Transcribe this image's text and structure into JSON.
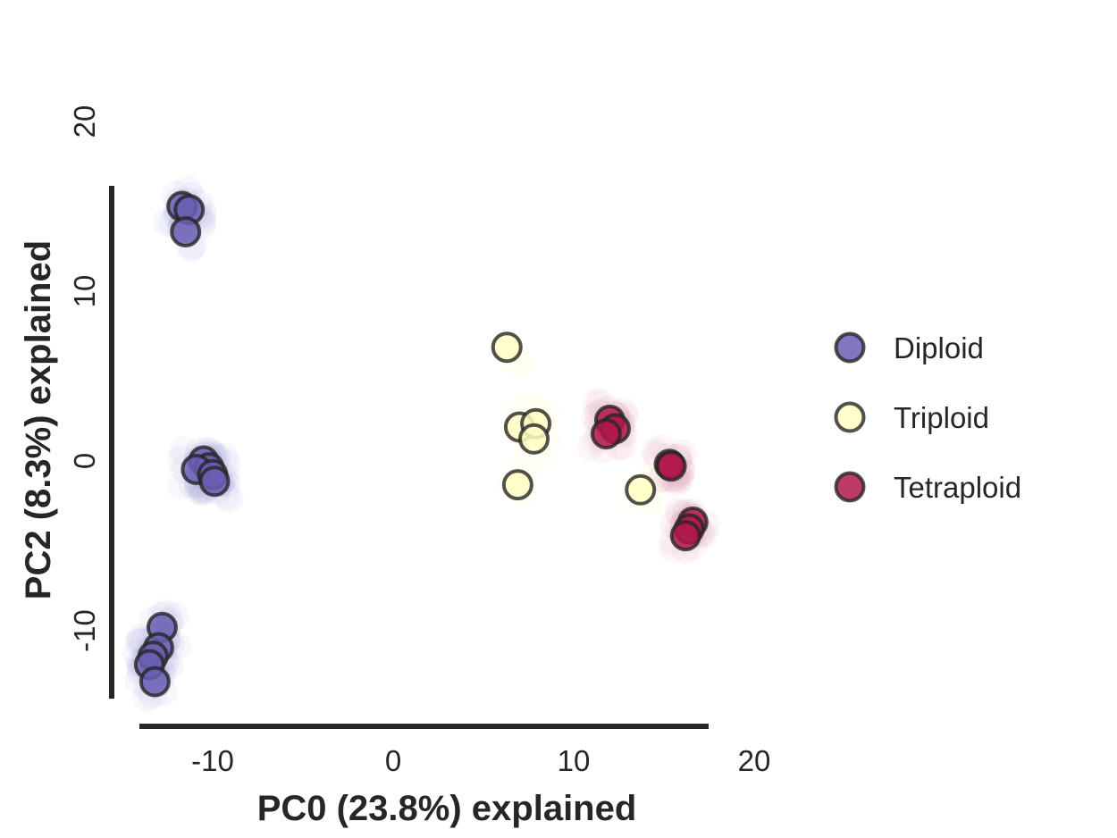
{
  "chart_data": {
    "type": "scatter",
    "title": "",
    "xlabel": "PC0 (23.8%) explained",
    "ylabel": "PC2 (8.3%) explained",
    "xlim": [
      -14,
      17
    ],
    "ylim": [
      -15.5,
      17
    ],
    "xticks": [
      -10,
      0,
      10,
      20
    ],
    "xtick_labels": [
      "-10",
      "0",
      "10",
      "20"
    ],
    "yticks": [
      -10,
      0,
      10,
      20
    ],
    "ytick_labels": [
      "-10",
      "0",
      "10",
      "20"
    ],
    "grid": false,
    "legend_position": "right",
    "series": [
      {
        "name": "Diploid",
        "color": "#6a5fb3",
        "halo_color": "#9b95d6",
        "points": [
          {
            "x": -11.7,
            "y": 15.0
          },
          {
            "x": -11.3,
            "y": 14.8
          },
          {
            "x": -11.5,
            "y": 13.5
          },
          {
            "x": -10.5,
            "y": 0.0
          },
          {
            "x": -10.2,
            "y": -0.4
          },
          {
            "x": -10.9,
            "y": -0.5
          },
          {
            "x": -10.0,
            "y": -0.8
          },
          {
            "x": -9.9,
            "y": -1.2
          },
          {
            "x": -12.8,
            "y": -9.8
          },
          {
            "x": -13.0,
            "y": -11.0
          },
          {
            "x": -13.3,
            "y": -11.5
          },
          {
            "x": -13.5,
            "y": -12.0
          },
          {
            "x": -13.2,
            "y": -13.0
          }
        ]
      },
      {
        "name": "Triploid",
        "color": "#fffdc2",
        "halo_color": "#fffbd6",
        "points": [
          {
            "x": 6.3,
            "y": 6.7
          },
          {
            "x": 7.0,
            "y": 2.0
          },
          {
            "x": 7.9,
            "y": 2.2
          },
          {
            "x": 7.8,
            "y": 1.3
          },
          {
            "x": 6.9,
            "y": -1.4
          },
          {
            "x": 13.7,
            "y": -1.7
          }
        ]
      },
      {
        "name": "Tetraploid",
        "color": "#b0184e",
        "halo_color": "#d48aa7",
        "points": [
          {
            "x": 12.0,
            "y": 2.4
          },
          {
            "x": 12.3,
            "y": 1.9
          },
          {
            "x": 11.8,
            "y": 1.6
          },
          {
            "x": 15.3,
            "y": -0.2
          },
          {
            "x": 15.4,
            "y": -0.3
          },
          {
            "x": 16.6,
            "y": -3.6
          },
          {
            "x": 16.4,
            "y": -4.0
          },
          {
            "x": 16.2,
            "y": -4.4
          }
        ]
      }
    ]
  }
}
